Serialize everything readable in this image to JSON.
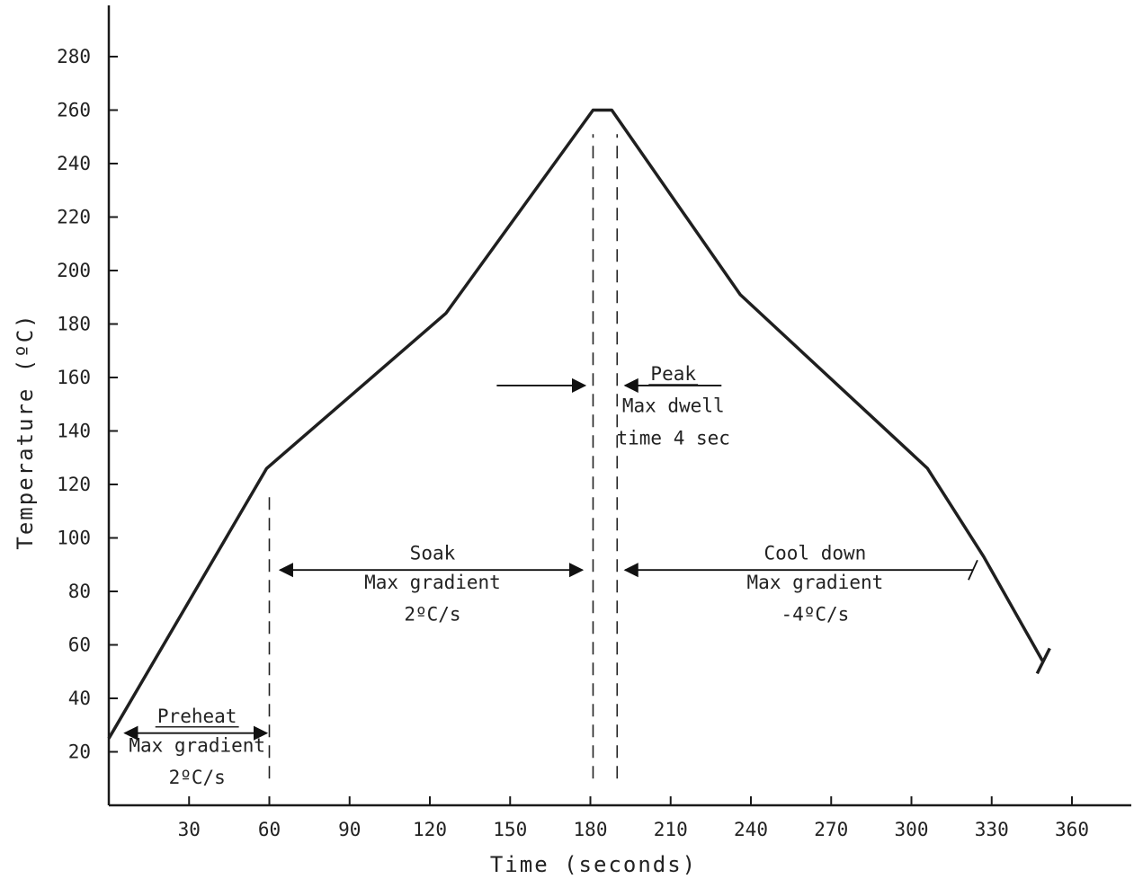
{
  "chart_data": {
    "type": "line",
    "title": "",
    "xlabel": "Time (seconds)",
    "ylabel": "Temperature (ºC)",
    "xlim": [
      0,
      380
    ],
    "ylim": [
      0,
      300
    ],
    "xticks": [
      30,
      60,
      90,
      120,
      150,
      180,
      210,
      240,
      270,
      300,
      330,
      360
    ],
    "yticks": [
      20,
      40,
      60,
      80,
      100,
      120,
      140,
      160,
      180,
      200,
      220,
      240,
      260,
      280
    ],
    "grid": false,
    "series": [
      {
        "points": [
          {
            "x": 0,
            "y": 25
          },
          {
            "x": 59,
            "y": 126
          },
          {
            "x": 126,
            "y": 184
          },
          {
            "x": 181,
            "y": 260
          },
          {
            "x": 188,
            "y": 260
          },
          {
            "x": 236,
            "y": 191
          },
          {
            "x": 306,
            "y": 126
          },
          {
            "x": 327,
            "y": 93
          },
          {
            "x": 349,
            "y": 54
          }
        ]
      }
    ],
    "end_tick": {
      "x": 349,
      "y": 54
    },
    "vlines": [
      {
        "x": 60,
        "y_from": 10,
        "y_to": 117
      },
      {
        "x": 181,
        "y_from": 10,
        "y_to": 251
      },
      {
        "x": 190,
        "y_from": 10,
        "y_to": 251
      }
    ],
    "annotations": [
      {
        "id": "preheat",
        "lines": [
          "Preheat",
          "Max gradient",
          "2ºC/s"
        ],
        "text_x": 33,
        "text_y": [
          31,
          20,
          8
        ],
        "underline_first": true,
        "arrow": {
          "from": 6,
          "to": 59,
          "y": 27,
          "heads": "both"
        }
      },
      {
        "id": "soak",
        "lines": [
          "Soak",
          "Max gradient",
          "2ºC/s"
        ],
        "text_x": 121,
        "text_y": [
          92,
          81,
          69
        ],
        "underline_first": false,
        "arrow": {
          "from": 64,
          "to": 177,
          "y": 88,
          "heads": "both"
        }
      },
      {
        "id": "peak",
        "lines": [
          "Peak",
          "Max dwell",
          "time 4 sec"
        ],
        "text_x": 211,
        "text_y": [
          159,
          147,
          135
        ],
        "underline_first": true,
        "arrow_in_left": {
          "from": 145,
          "to": 178,
          "y": 157
        },
        "arrow_in_right": {
          "from": 229,
          "to": 193,
          "y": 157
        }
      },
      {
        "id": "cooldown",
        "lines": [
          "Cool down",
          "Max gradient",
          "-4ºC/s"
        ],
        "text_x": 264,
        "text_y": [
          92,
          81,
          69
        ],
        "underline_first": false,
        "arrow": {
          "from": 193,
          "to": 323,
          "y": 88,
          "heads": "start",
          "end_bar": true
        }
      }
    ]
  }
}
